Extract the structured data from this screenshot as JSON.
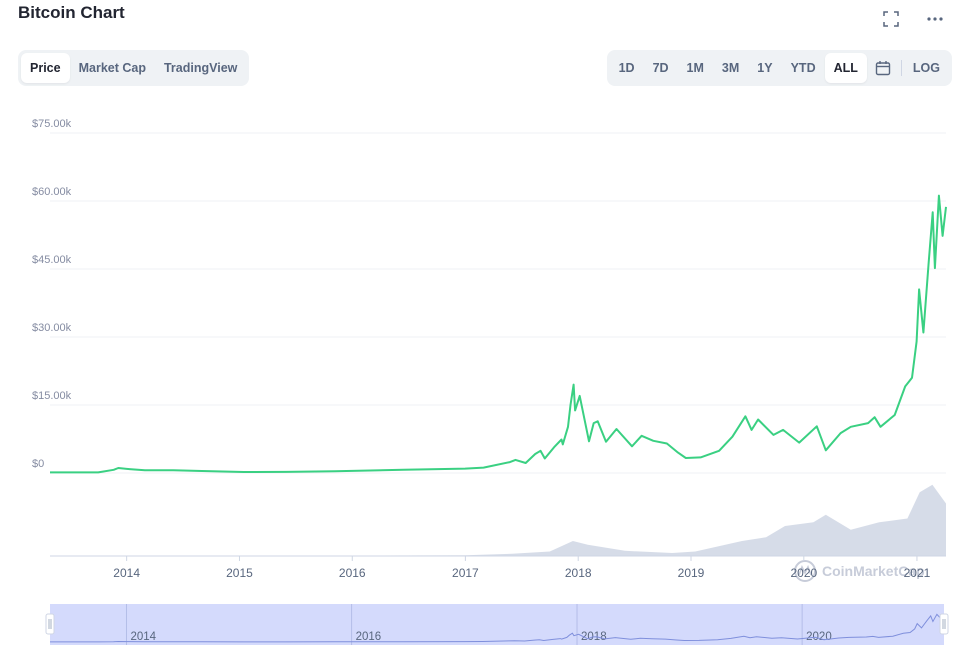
{
  "header": {
    "title": "Bitcoin Chart"
  },
  "icons": {
    "fullscreen": "fullscreen-icon",
    "more": "more-icon",
    "calendar": "calendar-icon",
    "watermark": "coinmarketcap-logo-icon"
  },
  "chart_tabs": [
    {
      "label": "Price",
      "active": true
    },
    {
      "label": "Market Cap",
      "active": false
    },
    {
      "label": "TradingView",
      "active": false
    }
  ],
  "ranges": [
    {
      "label": "1D",
      "active": false
    },
    {
      "label": "7D",
      "active": false
    },
    {
      "label": "1M",
      "active": false
    },
    {
      "label": "3M",
      "active": false
    },
    {
      "label": "1Y",
      "active": false
    },
    {
      "label": "YTD",
      "active": false
    },
    {
      "label": "ALL",
      "active": true
    }
  ],
  "log_label": "LOG",
  "watermark": "CoinMarketCap",
  "colors": {
    "line": "#3ad082",
    "volume": "#cfd6e4",
    "navigator": "#ccd4fb",
    "grid": "#eff2f5"
  },
  "chart_data": {
    "type": "line",
    "title": "",
    "y_ticks": [
      "$75.00k",
      "$60.00k",
      "$45.00k",
      "$30.00k",
      "$15.00k",
      "$0"
    ],
    "y_tick_values": [
      75000,
      60000,
      45000,
      30000,
      15000,
      0
    ],
    "ylim": [
      0,
      75000
    ],
    "xlim": [
      "2013-04-28",
      "2021-04-05"
    ],
    "x_ticks": [
      {
        "label": "2014",
        "date": "2014-01-01"
      },
      {
        "label": "2015",
        "date": "2015-01-01"
      },
      {
        "label": "2016",
        "date": "2016-01-01"
      },
      {
        "label": "2017",
        "date": "2017-01-01"
      },
      {
        "label": "2018",
        "date": "2018-01-01"
      },
      {
        "label": "2019",
        "date": "2019-01-01"
      },
      {
        "label": "2020",
        "date": "2020-01-01"
      },
      {
        "label": "2021",
        "date": "2021-01-01"
      }
    ],
    "navigator_ticks": [
      {
        "label": "2014",
        "date": "2014-01-01"
      },
      {
        "label": "2016",
        "date": "2016-01-01"
      },
      {
        "label": "2018",
        "date": "2018-01-01"
      },
      {
        "label": "2020",
        "date": "2020-01-01"
      }
    ],
    "grid": true,
    "series": [
      {
        "points": [
          [
            "2013-04-28",
            130
          ],
          [
            "2013-10-01",
            130
          ],
          [
            "2013-11-20",
            700
          ],
          [
            "2013-12-05",
            1100
          ],
          [
            "2014-01-10",
            850
          ],
          [
            "2014-03-01",
            600
          ],
          [
            "2014-06-01",
            620
          ],
          [
            "2014-09-01",
            450
          ],
          [
            "2015-01-15",
            220
          ],
          [
            "2015-06-01",
            240
          ],
          [
            "2015-11-05",
            400
          ],
          [
            "2016-06-15",
            700
          ],
          [
            "2016-12-31",
            960
          ],
          [
            "2017-03-01",
            1200
          ],
          [
            "2017-05-25",
            2400
          ],
          [
            "2017-06-12",
            2900
          ],
          [
            "2017-07-15",
            2200
          ],
          [
            "2017-08-15",
            4200
          ],
          [
            "2017-09-01",
            4900
          ],
          [
            "2017-09-15",
            3200
          ],
          [
            "2017-10-15",
            5700
          ],
          [
            "2017-11-08",
            7400
          ],
          [
            "2017-11-12",
            6300
          ],
          [
            "2017-11-29",
            10200
          ],
          [
            "2017-12-07",
            15000
          ],
          [
            "2017-12-17",
            19500
          ],
          [
            "2017-12-22",
            13800
          ],
          [
            "2018-01-06",
            17000
          ],
          [
            "2018-02-05",
            7000
          ],
          [
            "2018-02-20",
            11000
          ],
          [
            "2018-03-05",
            11400
          ],
          [
            "2018-04-01",
            6900
          ],
          [
            "2018-05-05",
            9700
          ],
          [
            "2018-06-24",
            5900
          ],
          [
            "2018-07-25",
            8200
          ],
          [
            "2018-09-01",
            7100
          ],
          [
            "2018-10-15",
            6500
          ],
          [
            "2018-11-20",
            4500
          ],
          [
            "2018-12-15",
            3300
          ],
          [
            "2019-02-01",
            3450
          ],
          [
            "2019-04-02",
            4900
          ],
          [
            "2019-05-15",
            8000
          ],
          [
            "2019-06-26",
            12500
          ],
          [
            "2019-07-16",
            9500
          ],
          [
            "2019-08-06",
            11800
          ],
          [
            "2019-09-25",
            8400
          ],
          [
            "2019-10-26",
            9500
          ],
          [
            "2019-12-17",
            6700
          ],
          [
            "2020-02-12",
            10300
          ],
          [
            "2020-03-12",
            5000
          ],
          [
            "2020-04-29",
            8800
          ],
          [
            "2020-06-01",
            10200
          ],
          [
            "2020-07-27",
            11000
          ],
          [
            "2020-08-17",
            12300
          ],
          [
            "2020-09-05",
            10200
          ],
          [
            "2020-10-21",
            12800
          ],
          [
            "2020-11-24",
            19100
          ],
          [
            "2020-12-16",
            21000
          ],
          [
            "2020-12-31",
            29000
          ],
          [
            "2021-01-08",
            40500
          ],
          [
            "2021-01-22",
            31000
          ],
          [
            "2021-02-08",
            46500
          ],
          [
            "2021-02-21",
            57500
          ],
          [
            "2021-02-28",
            45200
          ],
          [
            "2021-03-13",
            61200
          ],
          [
            "2021-03-25",
            52300
          ],
          [
            "2021-04-05",
            58700
          ]
        ]
      }
    ],
    "volume": {
      "note": "relative volume, 0-1 scale",
      "points": [
        [
          "2013-04-28",
          0.0
        ],
        [
          "2017-01-01",
          0.01
        ],
        [
          "2017-06-01",
          0.03
        ],
        [
          "2017-10-01",
          0.06
        ],
        [
          "2017-12-15",
          0.2
        ],
        [
          "2018-02-01",
          0.15
        ],
        [
          "2018-06-01",
          0.07
        ],
        [
          "2018-11-01",
          0.04
        ],
        [
          "2019-01-15",
          0.06
        ],
        [
          "2019-06-15",
          0.2
        ],
        [
          "2019-09-01",
          0.25
        ],
        [
          "2019-11-01",
          0.4
        ],
        [
          "2020-02-01",
          0.45
        ],
        [
          "2020-03-12",
          0.55
        ],
        [
          "2020-06-01",
          0.35
        ],
        [
          "2020-09-01",
          0.45
        ],
        [
          "2020-12-01",
          0.5
        ],
        [
          "2021-01-10",
          0.85
        ],
        [
          "2021-02-20",
          0.95
        ],
        [
          "2021-04-05",
          0.7
        ]
      ]
    }
  }
}
